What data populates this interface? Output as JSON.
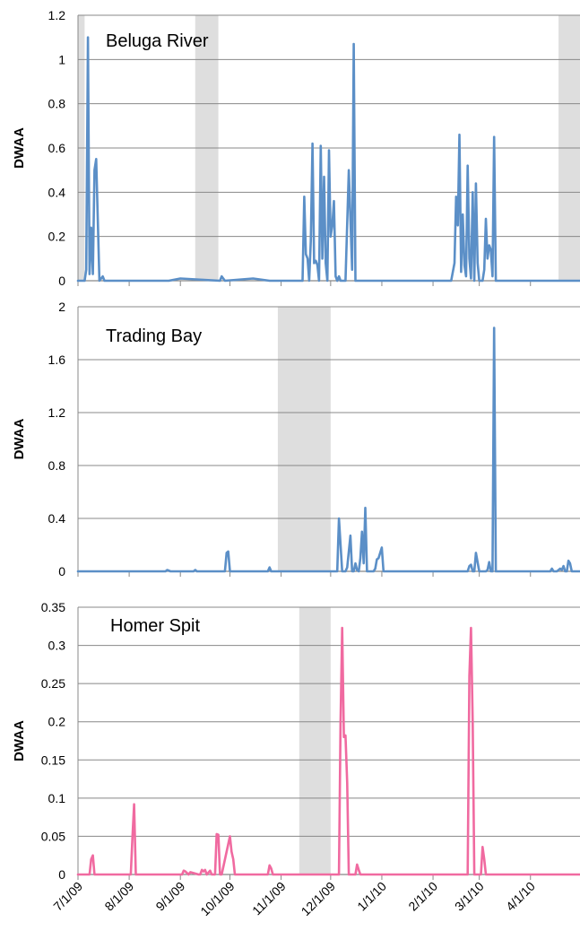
{
  "chart_data": [
    {
      "type": "line",
      "title": "Beluga River",
      "ylabel": "DWAA",
      "ylim": [
        0,
        1.2
      ],
      "yticks": [
        "0",
        "0.2",
        "0.4",
        "0.6",
        "0.8",
        "1",
        "1.2"
      ],
      "xlim": [
        "7/1/09",
        "5/1/10"
      ],
      "grid": true,
      "color": "#5b8fc7",
      "gaps": [
        [
          "7/1/09",
          "7/5/09"
        ],
        [
          "9/10/09",
          "9/24/09"
        ],
        [
          "4/18/10",
          "5/1/10"
        ]
      ],
      "series": [
        {
          "x": [
            "7/1/09",
            "7/5/09",
            "7/6/09",
            "7/7/09",
            "7/8/09",
            "7/9/09",
            "7/10/09",
            "7/11/09",
            "7/12/09",
            "7/14/09",
            "7/16/09",
            "7/17/09",
            "8/1/09",
            "8/20/09",
            "8/25/09",
            "9/1/09",
            "9/25/09",
            "9/26/09",
            "9/28/09",
            "10/15/09",
            "10/25/09",
            "10/26/09",
            "11/1/09",
            "11/14/09",
            "11/15/09",
            "11/16/09",
            "11/17/09",
            "11/18/09",
            "11/19/09",
            "11/20/09",
            "11/21/09",
            "11/22/09",
            "11/23/09",
            "11/24/09",
            "11/25/09",
            "11/26/09",
            "11/27/09",
            "11/28/09",
            "11/29/09",
            "11/30/09",
            "12/1/09",
            "12/2/09",
            "12/3/09",
            "12/4/09",
            "12/5/09",
            "12/6/09",
            "12/7/09",
            "12/8/09",
            "12/9/09",
            "12/10/09",
            "12/12/09",
            "12/14/09",
            "12/15/09",
            "12/16/09",
            "12/17/09",
            "12/18/09",
            "12/19/09",
            "12/20/09",
            "12/21/09",
            "12/22/09",
            "12/24/09",
            "1/1/10",
            "2/1/10",
            "2/12/10",
            "2/14/10",
            "2/15/10",
            "2/16/10",
            "2/17/10",
            "2/18/10",
            "2/19/10",
            "2/20/10",
            "2/21/10",
            "2/22/10",
            "2/23/10",
            "2/24/10",
            "2/25/10",
            "2/26/10",
            "2/27/10",
            "2/28/10",
            "3/1/10",
            "3/2/10",
            "3/3/10",
            "3/4/10",
            "3/5/10",
            "3/6/10",
            "3/7/10",
            "3/8/10",
            "3/9/10",
            "3/10/10",
            "3/11/10",
            "3/12/10",
            "3/13/10",
            "3/14/10",
            "3/15/10",
            "3/16/10",
            "3/17/10",
            "3/18/10",
            "3/19/10",
            "3/20/10",
            "3/21/10",
            "3/22/10",
            "4/1/10",
            "4/18/10",
            "5/1/10"
          ],
          "y": [
            0,
            0,
            0.05,
            1.1,
            0.03,
            0.24,
            0.03,
            0.5,
            0.55,
            0,
            0.02,
            0,
            0,
            0,
            0,
            0.01,
            0,
            0.02,
            0,
            0.01,
            0,
            0,
            0,
            0,
            0.38,
            0.12,
            0.1,
            0,
            0.18,
            0.62,
            0.08,
            0.09,
            0.07,
            0,
            0.61,
            0.1,
            0.47,
            0.08,
            0,
            0.59,
            0.2,
            0.25,
            0.36,
            0.02,
            0,
            0.02,
            0,
            0,
            0,
            0,
            0.5,
            0.05,
            1.07,
            0,
            0,
            0,
            0,
            0,
            0,
            0,
            0,
            0,
            0,
            0,
            0.08,
            0.38,
            0.25,
            0.66,
            0.04,
            0.3,
            0.07,
            0.02,
            0.52,
            0.1,
            0.01,
            0.4,
            0,
            0.44,
            0.08,
            0,
            0,
            0,
            0.05,
            0.28,
            0.1,
            0.16,
            0.14,
            0.02,
            0.65,
            0,
            0,
            0,
            0,
            0,
            0,
            0,
            0,
            0,
            0,
            0,
            0,
            0,
            0,
            0
          ]
        }
      ]
    },
    {
      "type": "line",
      "title": "Trading Bay",
      "ylabel": "DWAA",
      "ylim": [
        0,
        2
      ],
      "yticks": [
        "0",
        "0.4",
        "0.8",
        "1.2",
        "1.6",
        "2"
      ],
      "xlim": [
        "7/1/09",
        "5/1/10"
      ],
      "grid": true,
      "color": "#5b8fc7",
      "gaps": [
        [
          "10/30/09",
          "12/1/09"
        ]
      ],
      "series": [
        {
          "x": [
            "7/1/09",
            "8/1/09",
            "8/23/09",
            "8/24/09",
            "8/26/09",
            "9/1/09",
            "9/8/09",
            "9/9/09",
            "9/10/09",
            "9/11/09",
            "9/12/09",
            "9/28/09",
            "9/29/09",
            "9/30/09",
            "10/1/09",
            "10/24/09",
            "10/25/09",
            "10/26/09",
            "10/30/09",
            "12/1/09",
            "12/5/09",
            "12/6/09",
            "12/8/09",
            "12/9/09",
            "12/10/09",
            "12/11/09",
            "12/13/09",
            "12/14/09",
            "12/15/09",
            "12/16/09",
            "12/17/09",
            "12/18/09",
            "12/19/09",
            "12/20/09",
            "12/21/09",
            "12/22/09",
            "12/23/09",
            "12/24/09",
            "12/25/09",
            "12/27/09",
            "12/28/09",
            "12/29/09",
            "12/30/09",
            "12/31/09",
            "1/1/10",
            "1/2/10",
            "1/3/10",
            "1/4/10",
            "1/5/10",
            "1/6/10",
            "1/7/10",
            "1/8/10",
            "1/10/10",
            "1/11/10",
            "1/12/10",
            "1/13/10",
            "1/14/10",
            "1/15/10",
            "1/16/10",
            "2/1/10",
            "2/20/10",
            "2/21/10",
            "2/22/10",
            "2/23/10",
            "2/24/10",
            "2/25/10",
            "2/26/10",
            "2/27/10",
            "3/1/10",
            "3/3/10",
            "3/4/10",
            "3/5/10",
            "3/6/10",
            "3/7/10",
            "3/8/10",
            "3/9/10",
            "3/10/10",
            "3/11/10",
            "4/1/10",
            "4/12/10",
            "4/13/10",
            "4/14/10",
            "4/15/10",
            "4/16/10",
            "4/17/10",
            "4/18/10",
            "4/19/10",
            "4/20/10",
            "4/21/10",
            "4/22/10",
            "4/23/10",
            "4/24/10",
            "4/25/10",
            "4/26/10",
            "4/27/10",
            "4/28/10",
            "4/29/10",
            "4/30/10",
            "5/1/10"
          ],
          "y": [
            0,
            0,
            0,
            0.01,
            0,
            0,
            0,
            0,
            0.01,
            0,
            0,
            0,
            0.14,
            0.15,
            0,
            0,
            0.03,
            0,
            0,
            0,
            0,
            0.4,
            0,
            0,
            0,
            0.03,
            0.27,
            0,
            0,
            0.06,
            0.01,
            0,
            0.1,
            0.3,
            0.06,
            0.48,
            0,
            0,
            0,
            0,
            0.02,
            0.09,
            0.1,
            0.14,
            0.18,
            0,
            0,
            0,
            0,
            0,
            0,
            0,
            0,
            0,
            0,
            0,
            0,
            0,
            0,
            0,
            0,
            0,
            0,
            0.04,
            0.05,
            0,
            0,
            0.14,
            0,
            0,
            0,
            0,
            0.01,
            0.07,
            0,
            0,
            1.84,
            0,
            0,
            0,
            0,
            0.02,
            0,
            0,
            0,
            0.01,
            0.02,
            0.01,
            0.04,
            0,
            0,
            0.08,
            0.06,
            0,
            0,
            0,
            0,
            0,
            0
          ]
        }
      ]
    },
    {
      "type": "line",
      "title": "Homer Spit",
      "ylabel": "DWAA",
      "ylim": [
        0,
        0.35
      ],
      "yticks": [
        "0",
        "0.05",
        "0.1",
        "0.15",
        "0.2",
        "0.25",
        "0.3",
        "0.35"
      ],
      "xlim": [
        "7/1/09",
        "5/1/10"
      ],
      "xticks": [
        "7/1/09",
        "8/1/09",
        "9/1/09",
        "10/1/09",
        "11/1/09",
        "12/1/09",
        "1/1/10",
        "2/1/10",
        "3/1/10",
        "4/1/10"
      ],
      "grid": true,
      "color": "#f06aa0",
      "gaps": [
        [
          "11/12/09",
          "12/1/09"
        ]
      ],
      "series": [
        {
          "x": [
            "7/1/09",
            "7/8/09",
            "7/9/09",
            "7/10/09",
            "7/11/09",
            "8/1/09",
            "8/2/09",
            "8/3/09",
            "8/4/09",
            "8/5/09",
            "9/1/09",
            "9/2/09",
            "9/3/09",
            "9/4/09",
            "9/6/09",
            "9/7/09",
            "9/12/09",
            "9/13/09",
            "9/14/09",
            "9/15/09",
            "9/16/09",
            "9/17/09",
            "9/19/09",
            "9/20/09",
            "9/22/09",
            "9/23/09",
            "9/24/09",
            "9/25/09",
            "9/26/09",
            "10/1/09",
            "10/2/09",
            "10/3/09",
            "10/4/09",
            "10/5/09",
            "10/6/09",
            "10/7/09",
            "10/24/09",
            "10/25/09",
            "10/26/09",
            "10/27/09",
            "11/1/09",
            "11/12/09",
            "12/1/09",
            "12/6/09",
            "12/7/09",
            "12/8/09",
            "12/9/09",
            "12/10/09",
            "12/11/09",
            "12/12/09",
            "12/13/09",
            "12/14/09",
            "12/15/09",
            "12/16/09",
            "12/17/09",
            "12/18/09",
            "12/19/09",
            "12/20/09",
            "12/21/09",
            "12/22/09",
            "12/23/09",
            "12/24/09",
            "12/25/09",
            "12/26/09",
            "12/27/09",
            "12/28/09",
            "12/29/09",
            "12/30/09",
            "12/31/09",
            "1/1/10",
            "1/2/10",
            "1/3/10",
            "1/4/10",
            "2/1/10",
            "2/22/10",
            "2/23/10",
            "2/24/10",
            "2/25/10",
            "2/26/10",
            "2/27/10",
            "3/1/10",
            "3/2/10",
            "3/3/10",
            "3/4/10",
            "3/5/10",
            "3/6/10",
            "4/1/10",
            "5/1/10"
          ],
          "y": [
            0,
            0,
            0.02,
            0.025,
            0,
            0,
            0,
            0.05,
            0.092,
            0,
            0,
            0,
            0.005,
            0.004,
            0,
            0.003,
            0,
            0,
            0.006,
            0.004,
            0.006,
            0,
            0.005,
            0,
            0,
            0.053,
            0.052,
            0,
            0,
            0.05,
            0.03,
            0.02,
            0,
            0,
            0,
            0,
            0,
            0.012,
            0.008,
            0,
            0,
            0,
            0,
            0,
            0.2,
            0.323,
            0.18,
            0.182,
            0.12,
            0,
            0,
            0,
            0,
            0,
            0.013,
            0.006,
            0,
            0,
            0,
            0,
            0,
            0,
            0,
            0,
            0,
            0,
            0,
            0,
            0,
            0,
            0,
            0,
            0,
            0,
            0,
            0.26,
            0.323,
            0.2,
            0,
            0,
            0,
            0,
            0.036,
            0.02,
            0,
            0,
            0,
            0
          ]
        }
      ]
    }
  ]
}
